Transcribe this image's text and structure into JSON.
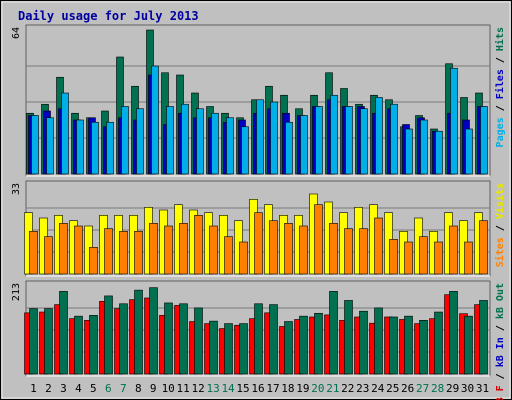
{
  "chart_data": {
    "type": "bar",
    "title": "Daily usage for July 2013",
    "categories": [
      "1",
      "2",
      "3",
      "4",
      "5",
      "6",
      "7",
      "8",
      "9",
      "10",
      "11",
      "12",
      "13",
      "14",
      "15",
      "16",
      "17",
      "18",
      "19",
      "20",
      "21",
      "22",
      "23",
      "24",
      "25",
      "26",
      "27",
      "28",
      "29",
      "30",
      "31"
    ],
    "weekend_days": [
      6,
      7,
      13,
      14,
      20,
      21,
      27,
      28
    ],
    "panels": [
      {
        "id": "hits",
        "max_label": "64",
        "ymax": 64,
        "side_labels": [
          {
            "text": "Pages",
            "color": "#00aee8"
          },
          {
            "text": " / ",
            "color": "#000000"
          },
          {
            "text": "Files",
            "color": "#0000c0"
          },
          {
            "text": " / ",
            "color": "#000000"
          },
          {
            "text": "Hits",
            "color": "#007050"
          }
        ],
        "series": [
          {
            "name": "Hits",
            "color": "#007050",
            "values": [
              27,
              31,
              43,
              27,
              25,
              28,
              52,
              39,
              64,
              45,
              44,
              36,
              30,
              27,
              25,
              33,
              39,
              35,
              29,
              35,
              45,
              38,
              31,
              35,
              33,
              21,
              26,
              20,
              49,
              34,
              36
            ]
          },
          {
            "name": "Files",
            "color": "#0000c0",
            "values": [
              26,
              28,
              29,
              24,
              25,
              21,
              25,
              24,
              44,
              22,
              27,
              25,
              25,
              23,
              24,
              27,
              29,
              27,
              26,
              30,
              33,
              30,
              30,
              27,
              29,
              22,
              25,
              19,
              27,
              24,
              30
            ]
          },
          {
            "name": "Pages",
            "color": "#00aee8",
            "values": [
              26,
              25,
              36,
              24,
              23,
              23,
              30,
              29,
              48,
              30,
              31,
              29,
              27,
              25,
              21,
              33,
              32,
              23,
              26,
              30,
              35,
              30,
              29,
              34,
              31,
              20,
              24,
              19,
              47,
              20,
              30
            ]
          }
        ]
      },
      {
        "id": "visits",
        "max_label": "33",
        "ymax": 33,
        "side_labels": [
          {
            "text": "Sites",
            "color": "#ff8000"
          },
          {
            "text": " / ",
            "color": "#000000"
          },
          {
            "text": "Visits",
            "color": "#e8e800"
          }
        ],
        "series": [
          {
            "name": "Visits",
            "color": "#ffff00",
            "values": [
              23,
              21,
              22,
              20,
              18,
              22,
              22,
              22,
              25,
              24,
              26,
              24,
              23,
              22,
              20,
              28,
              26,
              22,
              22,
              30,
              27,
              23,
              25,
              26,
              23,
              16,
              21,
              16,
              23,
              20,
              23
            ]
          },
          {
            "name": "Sites",
            "color": "#ff8000",
            "values": [
              16,
              14,
              19,
              18,
              10,
              17,
              16,
              16,
              19,
              18,
              19,
              22,
              18,
              14,
              12,
              23,
              20,
              19,
              18,
              26,
              19,
              17,
              17,
              21,
              13,
              12,
              14,
              12,
              18,
              12,
              20
            ]
          }
        ]
      },
      {
        "id": "kb",
        "max_label": "213",
        "ymax": 213,
        "side_labels": [
          {
            "text": "kB F",
            "color": "#dd0000"
          },
          {
            "text": " / ",
            "color": "#000000"
          },
          {
            "text": "kB In",
            "color": "#0000c0"
          },
          {
            "text": " / ",
            "color": "#000000"
          },
          {
            "text": "kB Out",
            "color": "#007050"
          }
        ],
        "series": [
          {
            "name": "kB F",
            "color": "#ff0000",
            "values": [
              148,
              150,
              168,
              134,
              130,
              176,
              158,
              180,
              184,
              142,
              166,
              127,
              122,
              110,
              118,
              134,
              148,
              115,
              132,
              138,
              143,
              130,
              138,
              123,
              138,
              132,
              122,
              134,
              192,
              146,
              168
            ]
          },
          {
            "name": "kB Out",
            "color": "#007050",
            "values": [
              158,
              158,
              200,
              140,
              142,
              189,
              170,
              203,
              209,
              172,
              170,
              160,
              128,
              122,
              122,
              170,
              168,
              127,
              140,
              147,
              200,
              178,
              152,
              160,
              138,
              140,
              130,
              150,
              200,
              140,
              178
            ]
          }
        ]
      }
    ]
  }
}
